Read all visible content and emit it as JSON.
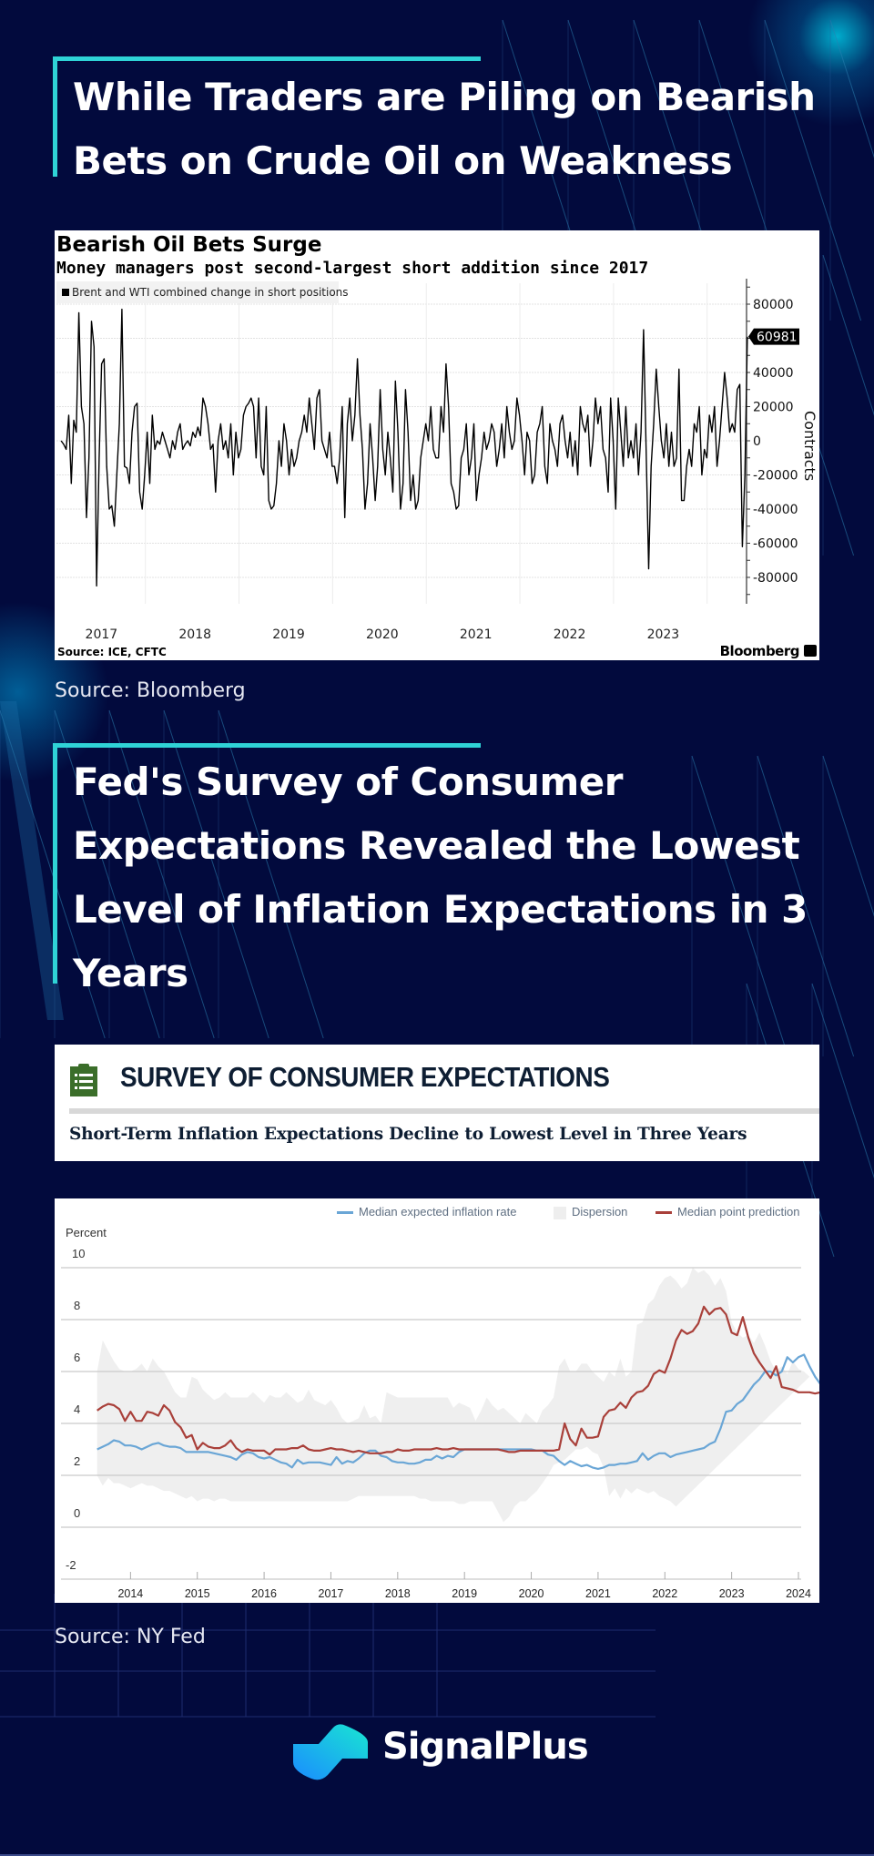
{
  "sections": [
    {
      "heading_lines": [
        "While Traders are Piling on Bearish",
        "Bets on Crude Oil on Weakness"
      ],
      "source": "Source: Bloomberg"
    },
    {
      "heading_lines": [
        "Fed's Survey of Consumer",
        "Expectations Revealed the Lowest",
        "Level of Inflation Expectations in 3",
        "Years"
      ],
      "source": "Source: NY Fed"
    }
  ],
  "survey_banner": {
    "title": "SURVEY OF CONSUMER EXPECTATIONS",
    "subtitle": "Short-Term Inflation Expectations Decline to Lowest Level in Three Years",
    "icon": "clipboard-list-icon",
    "icon_color": "#3b6e2a"
  },
  "brand": {
    "name": "SignalPlus",
    "logo_icon": "signalplus-logo-icon"
  },
  "colors": {
    "background": "#020a3d",
    "accent": "#2fd3d6",
    "blue_series": "#6aa6d6",
    "red_series": "#a9403a",
    "dispersion": "#eeeeee"
  },
  "chart_data": [
    {
      "type": "line",
      "title": "Bearish Oil Bets Surge",
      "subtitle": "Money managers post second-largest short addition since 2017",
      "legend": [
        "Brent and WTI combined change in short positions"
      ],
      "legend_placement": "top-left",
      "ylabel": "Contracts",
      "ylim": [
        -95000,
        95000
      ],
      "yticks": [
        80000,
        40000,
        20000,
        0,
        -20000,
        -40000,
        -60000,
        -80000
      ],
      "ytick_labels": [
        "80000",
        "40000",
        "20000",
        "0",
        "-20000",
        "-40000",
        "-60000",
        "-80000"
      ],
      "x_tick_labels": [
        "2017",
        "2018",
        "2019",
        "2020",
        "2021",
        "2022",
        "2023"
      ],
      "xlim": [
        2016.55,
        2023.95
      ],
      "last_value_label": "60981",
      "source": "Source: ICE, CFTC",
      "brand": "Bloomberg",
      "grid": true,
      "series": [
        {
          "name": "Brent and WTI combined change in short positions",
          "x_start": 2016.6,
          "x_step_weeks": 1,
          "values": [
            0,
            -2000,
            -5000,
            15000,
            -25000,
            12000,
            5000,
            75000,
            20000,
            10000,
            -45000,
            -10000,
            70000,
            55000,
            -85000,
            -10000,
            45000,
            48000,
            -15000,
            -40000,
            -38000,
            -50000,
            -20000,
            10000,
            77000,
            -15000,
            -16000,
            -25000,
            5000,
            20000,
            22000,
            -30000,
            -40000,
            -20000,
            5000,
            -25000,
            15000,
            -5000,
            0,
            -2000,
            5000,
            0,
            -5000,
            -10000,
            0,
            -5000,
            5000,
            10000,
            -5000,
            -2000,
            0,
            -3000,
            5000,
            2000,
            8000,
            3000,
            25000,
            20000,
            10000,
            -5000,
            -2000,
            -30000,
            0,
            10000,
            -5000,
            0,
            -10000,
            10000,
            -20000,
            5000,
            -10000,
            -5000,
            15000,
            20000,
            22000,
            25000,
            20000,
            -10000,
            25000,
            -15000,
            -20000,
            20000,
            -35000,
            -40000,
            -38000,
            -25000,
            0,
            -15000,
            10000,
            0,
            -20000,
            -5000,
            -15000,
            -10000,
            0,
            5000,
            15000,
            5000,
            25000,
            10000,
            -5000,
            25000,
            30000,
            0,
            -5000,
            -10000,
            5000,
            -15000,
            -15000,
            -25000,
            -10000,
            20000,
            -45000,
            10000,
            25000,
            0,
            15000,
            48000,
            15000,
            -5000,
            -40000,
            -25000,
            10000,
            -10000,
            -35000,
            -15000,
            30000,
            -5000,
            -20000,
            5000,
            -10000,
            -30000,
            35000,
            5000,
            -40000,
            -25000,
            30000,
            5000,
            -35000,
            -20000,
            -40000,
            -35000,
            -10000,
            0,
            10000,
            0,
            20000,
            -5000,
            -10000,
            -10000,
            20000,
            5000,
            45000,
            20000,
            -25000,
            -30000,
            -40000,
            -38000,
            -10000,
            -5000,
            10000,
            -20000,
            -10000,
            10000,
            -35000,
            -20000,
            -10000,
            5000,
            -5000,
            0,
            10000,
            5000,
            -15000,
            -5000,
            10000,
            -10000,
            20000,
            5000,
            -5000,
            0,
            25000,
            15000,
            0,
            -20000,
            5000,
            0,
            -25000,
            -20000,
            5000,
            10000,
            20000,
            -15000,
            -25000,
            10000,
            0,
            -5000,
            -15000,
            10000,
            15000,
            0,
            -10000,
            5000,
            -15000,
            0,
            -20000,
            20000,
            10000,
            5000,
            15000,
            -15000,
            0,
            25000,
            10000,
            20000,
            -5000,
            -10000,
            -30000,
            25000,
            0,
            -40000,
            25000,
            5000,
            -15000,
            20000,
            -10000,
            0,
            -10000,
            10000,
            -20000,
            5000,
            65000,
            -5000,
            -75000,
            -15000,
            10000,
            42000,
            20000,
            0,
            -10000,
            10000,
            -15000,
            5000,
            -15000,
            -10000,
            42000,
            -35000,
            -35000,
            -15000,
            -5000,
            -15000,
            10000,
            5000,
            20000,
            -20000,
            -5000,
            -10000,
            15000,
            5000,
            20000,
            -15000,
            0,
            20000,
            40000,
            25000,
            5000,
            10000,
            5000,
            30000,
            33000,
            -62000,
            -20000,
            60981
          ]
        }
      ]
    },
    {
      "type": "line",
      "title": "Short-Term Inflation Expectations",
      "ylabel": "Percent",
      "ylim": [
        -2,
        10
      ],
      "yticks": [
        -2,
        0,
        2,
        4,
        6,
        8,
        10
      ],
      "x_tick_labels": [
        "2014",
        "2015",
        "2016",
        "2017",
        "2018",
        "2019",
        "2020",
        "2021",
        "2022",
        "2023",
        "2024"
      ],
      "xlim": [
        2013.0,
        2024.0
      ],
      "legend": [
        "Median expected inflation rate",
        "Dispersion",
        "Median point prediction"
      ],
      "legend_placement": "top-right",
      "grid": true,
      "x_start": 2013.5,
      "x_step_months": 1,
      "series": [
        {
          "name": "Median expected inflation rate",
          "color": "#6aa6d6",
          "values": [
            3.0,
            3.1,
            3.2,
            3.35,
            3.3,
            3.15,
            3.15,
            3.1,
            3.0,
            3.1,
            3.2,
            3.25,
            3.15,
            3.1,
            3.1,
            3.05,
            2.9,
            2.9,
            2.9,
            2.9,
            2.9,
            2.85,
            2.8,
            2.75,
            2.7,
            2.6,
            2.8,
            2.9,
            2.85,
            2.7,
            2.65,
            2.7,
            2.6,
            2.5,
            2.45,
            2.3,
            2.6,
            2.45,
            2.5,
            2.5,
            2.5,
            2.45,
            2.4,
            2.7,
            2.45,
            2.55,
            2.5,
            2.65,
            2.85,
            2.95,
            2.95,
            2.75,
            2.7,
            2.55,
            2.5,
            2.5,
            2.45,
            2.45,
            2.5,
            2.6,
            2.6,
            2.75,
            2.65,
            2.75,
            2.7,
            2.9,
            3.0,
            3.0,
            3.0,
            3.0,
            3.0,
            3.0,
            3.0,
            3.0,
            3.0,
            3.0,
            3.0,
            3.0,
            3.0,
            2.95,
            2.95,
            2.8,
            2.75,
            2.55,
            2.4,
            2.55,
            2.45,
            2.35,
            2.4,
            2.3,
            2.25,
            2.3,
            2.4,
            2.4,
            2.45,
            2.45,
            2.5,
            2.55,
            2.85,
            2.6,
            2.75,
            2.85,
            2.85,
            2.7,
            2.8,
            2.85,
            2.9,
            2.95,
            3.0,
            3.05,
            3.2,
            3.3,
            3.8,
            4.45,
            4.5,
            4.75,
            4.9,
            5.2,
            5.5,
            5.7,
            6.0,
            6.0,
            5.85,
            6.0,
            6.55,
            6.35,
            6.55,
            6.65,
            6.2,
            5.8,
            5.5,
            5.95,
            5.45,
            5.25,
            5.25,
            4.75,
            5.15,
            4.85,
            4.55,
            4.35,
            4.05,
            4.1,
            4.1,
            4.0,
            3.8,
            3.5,
            3.0
          ]
        },
        {
          "name": "Median point prediction",
          "color": "#a9403a",
          "values": [
            4.5,
            4.65,
            4.75,
            4.7,
            4.55,
            4.1,
            4.45,
            4.1,
            4.1,
            4.45,
            4.4,
            4.3,
            4.7,
            4.5,
            4.05,
            3.85,
            3.45,
            3.55,
            3.0,
            3.25,
            3.1,
            3.05,
            3.05,
            3.15,
            3.35,
            3.05,
            2.9,
            3.0,
            2.95,
            2.95,
            2.95,
            2.8,
            3.0,
            3.0,
            3.0,
            3.05,
            3.05,
            3.15,
            3.0,
            2.95,
            2.95,
            3.0,
            3.05,
            3.0,
            3.0,
            2.95,
            2.9,
            2.95,
            2.9,
            2.85,
            2.85,
            2.85,
            2.9,
            2.9,
            3.0,
            2.95,
            2.95,
            3.0,
            3.0,
            3.0,
            3.0,
            3.05,
            3.0,
            3.0,
            3.05,
            3.0,
            3.0,
            3.0,
            3.0,
            3.0,
            3.0,
            3.0,
            3.0,
            2.95,
            2.9,
            2.9,
            2.95,
            2.95,
            2.95,
            2.95,
            2.95,
            2.95,
            2.95,
            3.0,
            4.0,
            3.4,
            3.15,
            3.8,
            3.45,
            3.45,
            3.5,
            4.25,
            4.5,
            4.55,
            4.8,
            4.6,
            5.0,
            5.2,
            5.25,
            5.45,
            5.9,
            6.05,
            5.95,
            6.5,
            7.2,
            7.6,
            7.45,
            7.55,
            7.85,
            8.5,
            8.2,
            8.4,
            8.45,
            8.2,
            7.5,
            7.4,
            8.1,
            7.3,
            6.7,
            6.35,
            6.05,
            5.75,
            6.2,
            5.4,
            5.35,
            5.3,
            5.2,
            5.2,
            5.2,
            5.15,
            5.2,
            4.6,
            4.05
          ]
        },
        {
          "name": "Dispersion",
          "color": "#eeeeee",
          "upper": [
            6.0,
            7.2,
            6.8,
            6.4,
            6.1,
            6.0,
            6.0,
            6.1,
            6.3,
            6.0,
            6.5,
            6.2,
            6.0,
            5.6,
            5.2,
            5.0,
            5.0,
            5.8,
            5.7,
            5.3,
            5.1,
            4.9,
            5.0,
            5.2,
            5.0,
            5.0,
            5.0,
            5.0,
            5.2,
            5.0,
            4.8,
            5.1,
            5.0,
            5.0,
            5.2,
            5.0,
            4.8,
            4.9,
            5.3,
            4.9,
            4.8,
            4.7,
            4.9,
            4.6,
            4.2,
            4.0,
            4.1,
            4.2,
            4.7,
            4.2,
            4.3,
            4.0,
            5.2,
            5.1,
            5.0,
            5.0,
            5.0,
            5.0,
            5.0,
            5.0,
            5.0,
            5.0,
            5.0,
            5.0,
            4.6,
            4.8,
            4.7,
            4.6,
            4.1,
            4.5,
            5.0,
            4.7,
            4.5,
            4.6,
            4.4,
            4.2,
            4.0,
            4.4,
            4.2,
            4.0,
            4.5,
            4.7,
            5.0,
            6.2,
            6.5,
            6.0,
            6.0,
            6.3,
            6.3,
            6.0,
            5.8,
            5.6,
            6.0,
            5.8,
            6.5,
            5.8,
            6.0,
            7.8,
            7.9,
            8.6,
            8.8,
            9.3,
            9.6,
            9.7,
            9.5,
            9.2,
            9.4,
            10.0,
            9.8,
            9.9,
            9.7,
            9.3,
            9.6,
            9.1,
            7.9,
            7.5,
            7.3,
            7.4,
            7.1,
            7.5,
            7.0,
            6.4,
            6.0,
            6.2,
            5.9,
            6.4,
            6.1,
            6.0,
            5.8
          ],
          "lower": [
            2.0,
            1.6,
            1.9,
            1.7,
            1.7,
            1.6,
            1.5,
            1.6,
            1.7,
            1.6,
            1.6,
            1.5,
            1.4,
            1.4,
            1.3,
            1.2,
            1.1,
            1.2,
            1.0,
            1.1,
            1.1,
            1.0,
            1.1,
            1.1,
            1.0,
            1.0,
            1.0,
            1.0,
            1.0,
            1.0,
            1.0,
            1.0,
            1.0,
            1.0,
            1.0,
            1.0,
            1.0,
            1.0,
            1.0,
            1.0,
            1.0,
            1.0,
            1.0,
            1.0,
            1.0,
            1.0,
            1.1,
            1.2,
            1.2,
            1.2,
            1.2,
            1.2,
            1.2,
            1.2,
            1.2,
            1.2,
            1.2,
            1.2,
            1.1,
            1.1,
            1.0,
            1.0,
            1.0,
            1.0,
            1.0,
            0.9,
            0.9,
            1.0,
            1.0,
            1.0,
            1.0,
            1.0,
            0.6,
            0.2,
            0.4,
            0.8,
            1.0,
            1.0,
            1.2,
            1.4,
            1.7,
            2.0,
            2.4,
            2.5,
            2.6,
            2.8,
            3.0,
            3.0,
            3.1,
            2.9,
            2.8,
            2.3,
            1.2,
            1.5,
            1.1,
            1.5,
            1.3,
            1.5,
            1.4,
            1.3,
            1.4,
            1.2,
            1.1,
            1.0,
            0.8
          ]
        }
      ]
    }
  ]
}
